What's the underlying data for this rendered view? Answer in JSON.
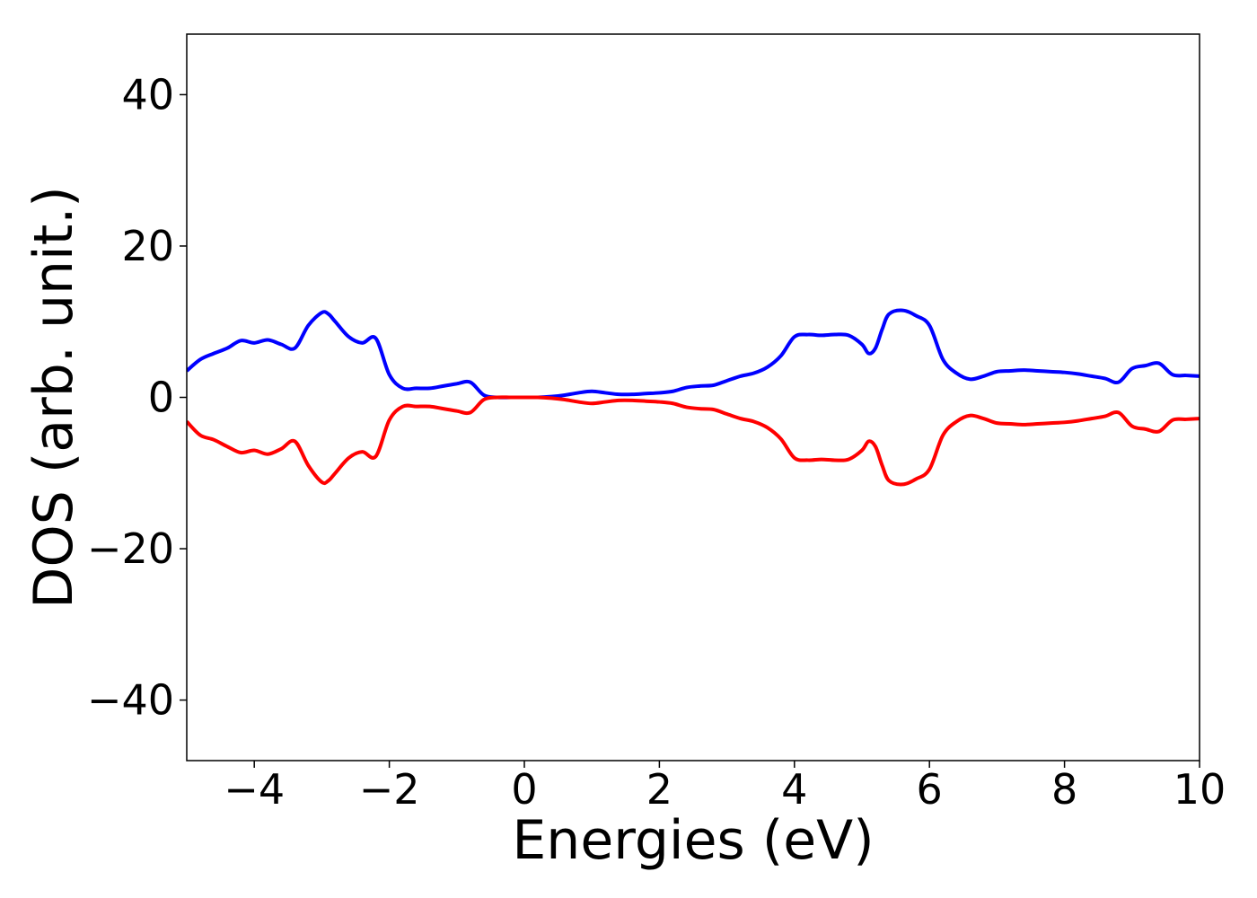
{
  "chart_data": {
    "type": "line",
    "title": "",
    "xlabel": "Energies (eV)",
    "ylabel": "DOS (arb. unit.)",
    "xlim": [
      -5,
      10
    ],
    "ylim": [
      -48,
      48
    ],
    "xticks": [
      -4,
      -2,
      0,
      2,
      4,
      6,
      8,
      10
    ],
    "xtick_labels": [
      "−4",
      "−2",
      "0",
      "2",
      "4",
      "6",
      "8",
      "10"
    ],
    "yticks": [
      40,
      20,
      0,
      -20,
      -40
    ],
    "ytick_labels": [
      "40",
      "20",
      "0",
      "−20",
      "−40"
    ],
    "grid": false,
    "legend": "none",
    "series": [
      {
        "color": "#0000ff",
        "x": [
          -5,
          -4.8,
          -4.6,
          -4.4,
          -4.2,
          -4.0,
          -3.8,
          -3.6,
          -3.4,
          -3.2,
          -3.0,
          -2.9,
          -2.8,
          -2.6,
          -2.4,
          -2.2,
          -2.0,
          -1.8,
          -1.6,
          -1.4,
          -1.2,
          -1.0,
          -0.8,
          -0.6,
          -0.4,
          -0.2,
          0.0,
          0.2,
          0.4,
          0.6,
          0.8,
          1.0,
          1.2,
          1.4,
          1.6,
          1.8,
          2.0,
          2.2,
          2.4,
          2.6,
          2.8,
          3.0,
          3.2,
          3.4,
          3.6,
          3.8,
          4.0,
          4.2,
          4.4,
          4.6,
          4.8,
          5.0,
          5.1,
          5.2,
          5.3,
          5.4,
          5.6,
          5.8,
          6.0,
          6.2,
          6.4,
          6.6,
          6.8,
          7.0,
          7.2,
          7.4,
          7.6,
          7.8,
          8.0,
          8.2,
          8.4,
          8.6,
          8.8,
          9.0,
          9.2,
          9.4,
          9.6,
          9.8,
          10.0
        ],
        "y": [
          3.5,
          5.0,
          5.8,
          6.5,
          7.5,
          7.2,
          7.6,
          7.0,
          6.5,
          9.5,
          11.2,
          11.0,
          10.0,
          8.0,
          7.2,
          7.8,
          3.0,
          1.2,
          1.2,
          1.2,
          1.5,
          1.8,
          2.0,
          0.3,
          0.0,
          0.0,
          0.0,
          0.0,
          0.1,
          0.3,
          0.6,
          0.8,
          0.6,
          0.4,
          0.4,
          0.5,
          0.6,
          0.8,
          1.3,
          1.5,
          1.6,
          2.2,
          2.8,
          3.2,
          4.0,
          5.5,
          8.0,
          8.3,
          8.2,
          8.3,
          8.2,
          7.0,
          5.8,
          6.5,
          9.0,
          11.0,
          11.5,
          10.8,
          9.5,
          5.0,
          3.2,
          2.4,
          2.8,
          3.4,
          3.5,
          3.6,
          3.5,
          3.4,
          3.3,
          3.1,
          2.8,
          2.5,
          2.0,
          3.8,
          4.2,
          4.5,
          3.0,
          2.9,
          2.8
        ]
      },
      {
        "color": "#ff0000",
        "x": [
          -5,
          -4.8,
          -4.6,
          -4.4,
          -4.2,
          -4.0,
          -3.8,
          -3.6,
          -3.4,
          -3.2,
          -3.0,
          -2.9,
          -2.8,
          -2.6,
          -2.4,
          -2.2,
          -2.0,
          -1.8,
          -1.6,
          -1.4,
          -1.2,
          -1.0,
          -0.8,
          -0.6,
          -0.4,
          -0.2,
          0.0,
          0.2,
          0.4,
          0.6,
          0.8,
          1.0,
          1.2,
          1.4,
          1.6,
          1.8,
          2.0,
          2.2,
          2.4,
          2.6,
          2.8,
          3.0,
          3.2,
          3.4,
          3.6,
          3.8,
          4.0,
          4.2,
          4.4,
          4.6,
          4.8,
          5.0,
          5.1,
          5.2,
          5.3,
          5.4,
          5.6,
          5.8,
          6.0,
          6.2,
          6.4,
          6.6,
          6.8,
          7.0,
          7.2,
          7.4,
          7.6,
          7.8,
          8.0,
          8.2,
          8.4,
          8.6,
          8.8,
          9.0,
          9.2,
          9.4,
          9.6,
          9.8,
          10.0
        ],
        "y": [
          -3.2,
          -5.0,
          -5.6,
          -6.5,
          -7.3,
          -7.0,
          -7.5,
          -6.8,
          -5.8,
          -9.0,
          -11.2,
          -11.0,
          -10.0,
          -8.0,
          -7.2,
          -7.8,
          -3.0,
          -1.2,
          -1.2,
          -1.2,
          -1.5,
          -1.8,
          -2.0,
          -0.3,
          0.0,
          0.0,
          0.0,
          0.0,
          -0.1,
          -0.3,
          -0.6,
          -0.8,
          -0.6,
          -0.4,
          -0.4,
          -0.5,
          -0.6,
          -0.8,
          -1.3,
          -1.5,
          -1.6,
          -2.2,
          -2.8,
          -3.2,
          -4.0,
          -5.5,
          -8.0,
          -8.3,
          -8.2,
          -8.3,
          -8.2,
          -7.0,
          -5.8,
          -6.5,
          -9.0,
          -11.0,
          -11.5,
          -10.8,
          -9.5,
          -5.0,
          -3.2,
          -2.4,
          -2.8,
          -3.4,
          -3.5,
          -3.6,
          -3.5,
          -3.4,
          -3.3,
          -3.1,
          -2.8,
          -2.5,
          -2.0,
          -3.8,
          -4.2,
          -4.5,
          -3.0,
          -2.9,
          -2.8
        ]
      }
    ]
  }
}
